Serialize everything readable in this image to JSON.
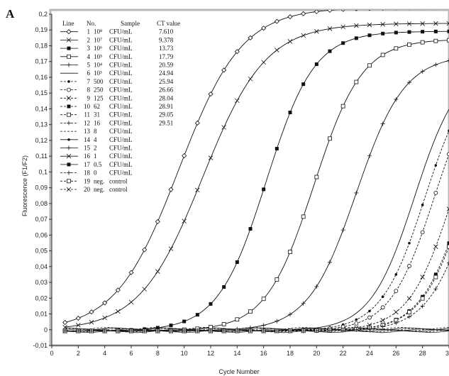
{
  "panel_label": "A",
  "chart_data": {
    "type": "line",
    "xlabel": "Cycle Number",
    "ylabel": "Fluorescence (F1/F2)",
    "xlim": [
      0,
      30
    ],
    "ylim": [
      -0.01,
      0.2
    ],
    "x_ticks": [
      "0",
      "2",
      "4",
      "6",
      "8",
      "10",
      "12",
      "14",
      "16",
      "18",
      "20",
      "22",
      "24",
      "26",
      "28",
      "30"
    ],
    "y_ticks": [
      "-0,01",
      "0",
      "0,01",
      "0,02",
      "0,03",
      "0,04",
      "0,05",
      "0,06",
      "0,07",
      "0,08",
      "0,09",
      "0,1",
      "0,11",
      "0,12",
      "0,13",
      "0,14",
      "0,15",
      "0,16",
      "0,17",
      "0,18",
      "0,19",
      "0,2"
    ],
    "grid": false,
    "legend_placement": "top-left",
    "legend_headers": {
      "line": "Line",
      "no": "No.",
      "sample": "Sample",
      "ct": "CT value"
    },
    "legend_rows": [
      {
        "line": "1",
        "no": "10⁸",
        "sample": "CFU/mL",
        "ct": "7.610"
      },
      {
        "line": "2",
        "no": "10⁷",
        "sample": "CFU/mL",
        "ct": "9.378"
      },
      {
        "line": "3",
        "no": "10⁶",
        "sample": "CFU/mL",
        "ct": "13.73"
      },
      {
        "line": "4",
        "no": "10⁵",
        "sample": "CFU/mL",
        "ct": "17.79"
      },
      {
        "line": "5",
        "no": "10⁴",
        "sample": "CFU/mL",
        "ct": "20.59"
      },
      {
        "line": "6",
        "no": "10³",
        "sample": "CFU/mL",
        "ct": "24.94"
      },
      {
        "line": "7",
        "no": "500",
        "sample": "CFU/mL",
        "ct": "25.94"
      },
      {
        "line": "8",
        "no": "250",
        "sample": "CFU/mL",
        "ct": "26.66"
      },
      {
        "line": "9",
        "no": "125",
        "sample": "CFU/mL",
        "ct": "28.04"
      },
      {
        "line": "10",
        "no": "62",
        "sample": "CFU/mL",
        "ct": "28.91"
      },
      {
        "line": "11",
        "no": "31",
        "sample": "CFU/mL",
        "ct": "29.05"
      },
      {
        "line": "12",
        "no": "16",
        "sample": "CFU/mL",
        "ct": "29.51"
      },
      {
        "line": "13",
        "no": "8",
        "sample": "CFU/mL",
        "ct": ""
      },
      {
        "line": "14",
        "no": "4",
        "sample": "CFU/mL",
        "ct": ""
      },
      {
        "line": "15",
        "no": "2",
        "sample": "CFU/mL",
        "ct": ""
      },
      {
        "line": "16",
        "no": "1",
        "sample": "CFU/mL",
        "ct": ""
      },
      {
        "line": "17",
        "no": "0.5",
        "sample": "CFU/mL",
        "ct": ""
      },
      {
        "line": "18",
        "no": "0",
        "sample": "CFU/mL",
        "ct": ""
      },
      {
        "line": "19",
        "no": "neg.",
        "sample": "control",
        "ct": ""
      },
      {
        "line": "20",
        "no": "neg.",
        "sample": "control",
        "ct": ""
      }
    ],
    "series": [
      {
        "name": "1",
        "marker": "diamond",
        "dash": "solid",
        "midpoint": 9.6,
        "plateau": 0.205,
        "slope": 0.42
      },
      {
        "name": "2",
        "marker": "x",
        "dash": "solid",
        "midpoint": 11.4,
        "plateau": 0.195,
        "slope": 0.42
      },
      {
        "name": "3",
        "marker": "square",
        "dash": "solid",
        "midpoint": 16.2,
        "plateau": 0.19,
        "slope": 0.55
      },
      {
        "name": "4",
        "marker": "square-open",
        "dash": "solid",
        "midpoint": 19.8,
        "plateau": 0.185,
        "slope": 0.55
      },
      {
        "name": "5",
        "marker": "plus",
        "dash": "solid",
        "midpoint": 23.0,
        "plateau": 0.175,
        "slope": 0.55
      },
      {
        "name": "6",
        "marker": "none",
        "dash": "solid",
        "midpoint": 27.4,
        "plateau": 0.17,
        "slope": 0.6
      },
      {
        "name": "7",
        "marker": "dot",
        "dash": "dashed",
        "midpoint": 28.2,
        "plateau": 0.17,
        "slope": 0.6
      },
      {
        "name": "8",
        "marker": "circle",
        "dash": "dashed",
        "midpoint": 28.9,
        "plateau": 0.17,
        "slope": 0.6
      },
      {
        "name": "9",
        "marker": "x",
        "dash": "dashed",
        "midpoint": 30.3,
        "plateau": 0.17,
        "slope": 0.6
      },
      {
        "name": "10",
        "marker": "square",
        "dash": "dashed",
        "midpoint": 31.2,
        "plateau": 0.17,
        "slope": 0.6
      },
      {
        "name": "11",
        "marker": "square-open",
        "dash": "dashed",
        "midpoint": 31.3,
        "plateau": 0.17,
        "slope": 0.6
      },
      {
        "name": "12",
        "marker": "plus",
        "dash": "dashed",
        "midpoint": 31.8,
        "plateau": 0.17,
        "slope": 0.6
      }
    ],
    "baseline_series_count": 8
  }
}
